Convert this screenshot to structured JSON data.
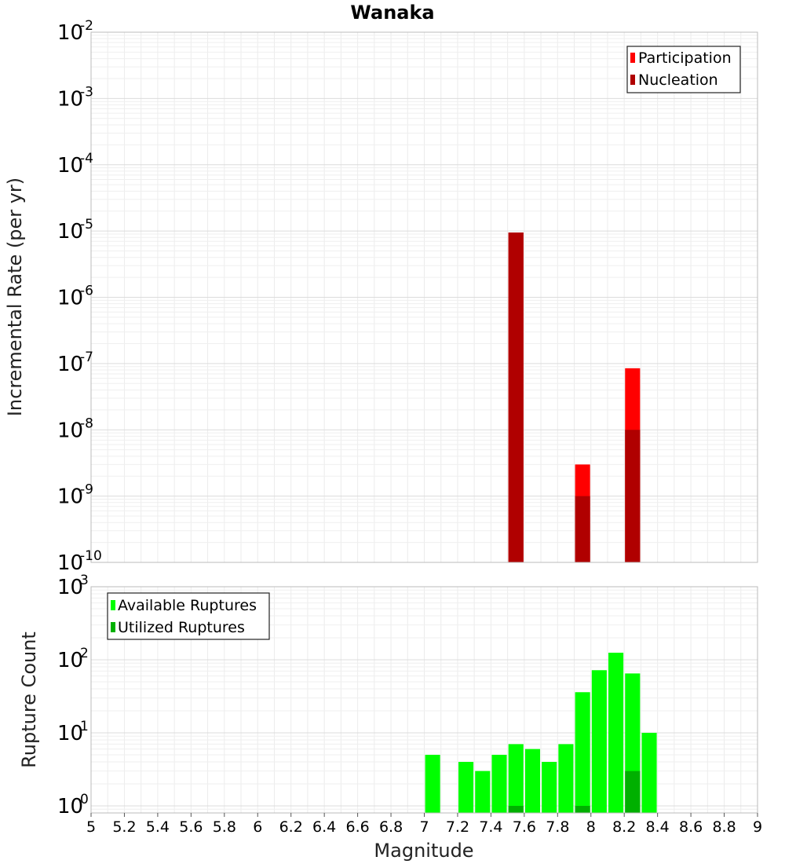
{
  "chart_data": [
    {
      "type": "bar",
      "title": "Wanaka",
      "xlabel": "",
      "ylabel": "Incremental Rate (per yr)",
      "yscale": "log",
      "ylim": [
        1e-10,
        0.01
      ],
      "xlim": [
        5,
        9
      ],
      "y_tick_exponents": [
        "-10",
        "-9",
        "-8",
        "-7",
        "-6",
        "-5",
        "-4",
        "-3",
        "-2"
      ],
      "grid": true,
      "legend_position": "top-right",
      "series": [
        {
          "name": "Participation",
          "color": "#ff0000",
          "points": [
            {
              "x": 7.55,
              "y": 9.5e-06
            },
            {
              "x": 7.95,
              "y": 3e-09
            },
            {
              "x": 8.25,
              "y": 8.5e-08
            }
          ]
        },
        {
          "name": "Nucleation",
          "color": "#b00000",
          "points": [
            {
              "x": 7.55,
              "y": 9.5e-06
            },
            {
              "x": 7.95,
              "y": 1e-09
            },
            {
              "x": 8.25,
              "y": 1e-08
            }
          ]
        }
      ]
    },
    {
      "type": "bar",
      "title": "",
      "xlabel": "Magnitude",
      "ylabel": "Rupture Count",
      "yscale": "log",
      "ylim": [
        0.8,
        1000
      ],
      "xlim": [
        5,
        9
      ],
      "y_tick_exponents": [
        "0",
        "1",
        "2",
        "3"
      ],
      "x_ticks": [
        "5",
        "5.2",
        "5.4",
        "5.6",
        "5.8",
        "6",
        "6.2",
        "6.4",
        "6.6",
        "6.8",
        "7",
        "7.2",
        "7.4",
        "7.6",
        "7.8",
        "8",
        "8.2",
        "8.4",
        "8.6",
        "8.8",
        "9"
      ],
      "grid": true,
      "legend_position": "top-left",
      "series": [
        {
          "name": "Available Ruptures",
          "color": "#00ff00",
          "points": [
            {
              "x": 7.05,
              "y": 5
            },
            {
              "x": 7.25,
              "y": 4
            },
            {
              "x": 7.35,
              "y": 3
            },
            {
              "x": 7.45,
              "y": 5
            },
            {
              "x": 7.55,
              "y": 7
            },
            {
              "x": 7.65,
              "y": 6
            },
            {
              "x": 7.75,
              "y": 4
            },
            {
              "x": 7.85,
              "y": 7
            },
            {
              "x": 7.95,
              "y": 36
            },
            {
              "x": 8.05,
              "y": 72
            },
            {
              "x": 8.15,
              "y": 125
            },
            {
              "x": 8.25,
              "y": 65
            },
            {
              "x": 8.35,
              "y": 10
            }
          ]
        },
        {
          "name": "Utilized Ruptures",
          "color": "#00b000",
          "points": [
            {
              "x": 7.55,
              "y": 1
            },
            {
              "x": 7.95,
              "y": 1
            },
            {
              "x": 8.25,
              "y": 3
            }
          ]
        }
      ]
    }
  ]
}
